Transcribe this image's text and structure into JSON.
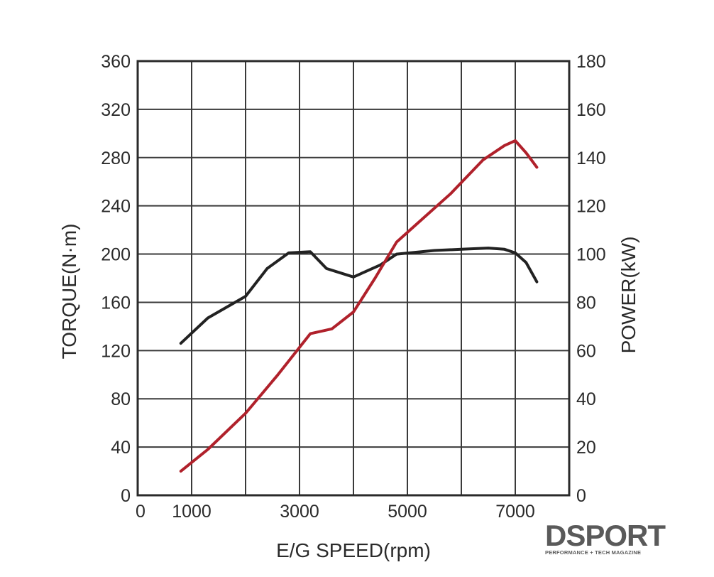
{
  "chart_data": {
    "type": "line",
    "xlabel": "E/G SPEED(rpm)",
    "ylabel_left": "TORQUE(N·m)",
    "ylabel_right": "POWER(kW)",
    "xlim": [
      0,
      8000
    ],
    "ylim_left": [
      0,
      360
    ],
    "ylim_right": [
      0,
      180
    ],
    "x_ticks": [
      0,
      1000,
      3000,
      5000,
      7000
    ],
    "y_left_ticks": [
      0,
      40,
      80,
      120,
      160,
      200,
      240,
      280,
      320,
      360
    ],
    "y_right_ticks": [
      0,
      20,
      40,
      60,
      80,
      100,
      120,
      140,
      160,
      180
    ],
    "grid": true,
    "series": [
      {
        "axis": "left",
        "color": "#222222",
        "x": [
          800,
          1300,
          2000,
          2400,
          2800,
          3200,
          3500,
          4000,
          4500,
          4800,
          5500,
          6000,
          6500,
          6800,
          7000,
          7200,
          7400
        ],
        "values": [
          126,
          147,
          165,
          188,
          201,
          202,
          188,
          181,
          191,
          200,
          203,
          204,
          205,
          204,
          201,
          193,
          177
        ]
      },
      {
        "axis": "right",
        "color": "#b0212b",
        "x": [
          800,
          1300,
          2000,
          2600,
          3200,
          3600,
          4000,
          4400,
          4800,
          5300,
          5800,
          6400,
          6800,
          7000,
          7200,
          7400
        ],
        "values": [
          10,
          19,
          34,
          50,
          67,
          69,
          76,
          90,
          105,
          115,
          125,
          139,
          145,
          147,
          142,
          136
        ]
      }
    ]
  },
  "logo": {
    "brand": "DSPORT",
    "tagline": "PERFORMANCE + TECH MAGAZINE"
  }
}
